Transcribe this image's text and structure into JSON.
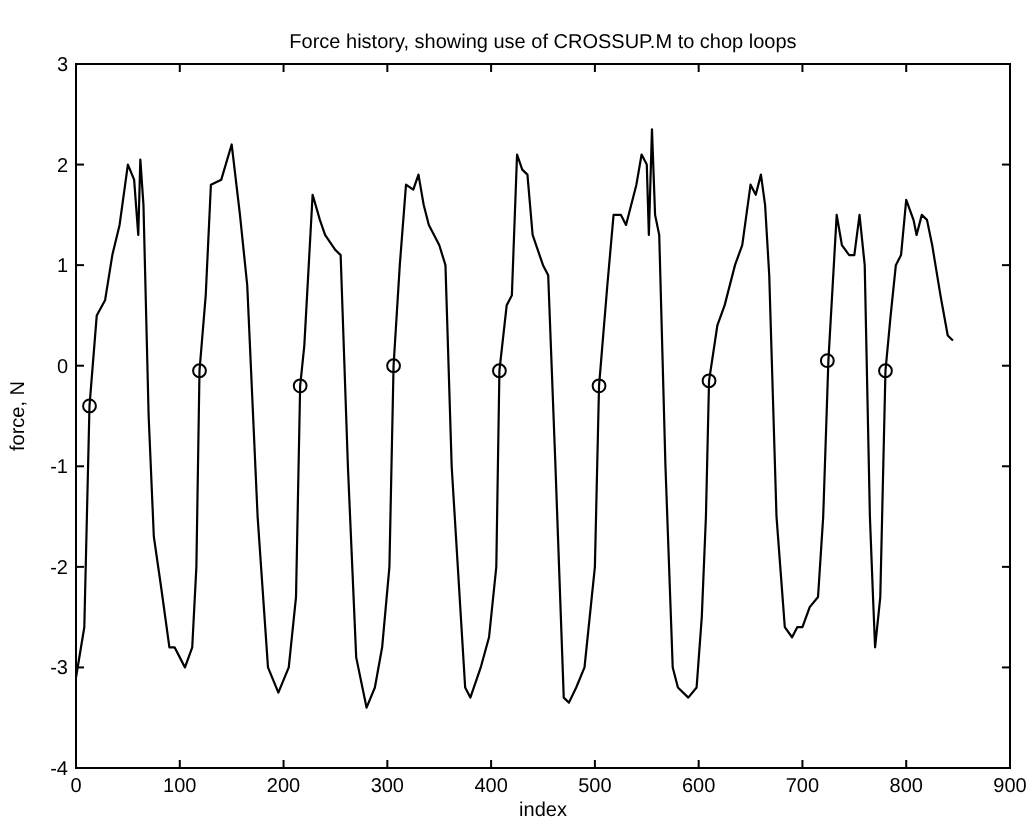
{
  "chart_data": {
    "type": "line",
    "title": "Force history, showing use of CROSSUP.M to chop loops",
    "xlabel": "index",
    "ylabel": "force, N",
    "series": [
      {
        "color": "#000000",
        "marker": "none",
        "x": [
          0,
          8,
          13,
          20,
          28,
          35,
          42,
          50,
          56,
          60,
          62,
          65,
          70,
          75,
          82,
          90,
          95,
          100,
          105,
          112,
          116,
          119,
          125,
          130,
          140,
          150,
          158,
          165,
          175,
          185,
          195,
          205,
          212,
          216,
          220,
          228,
          235,
          240,
          250,
          255,
          262,
          270,
          280,
          288,
          295,
          302,
          306,
          312,
          318,
          325,
          330,
          335,
          340,
          350,
          356,
          362,
          375,
          380,
          390,
          398,
          405,
          408,
          415,
          420,
          425,
          430,
          435,
          440,
          450,
          455,
          462,
          470,
          475,
          482,
          490,
          500,
          504,
          512,
          518,
          525,
          530,
          540,
          545,
          550,
          552,
          555,
          558,
          562,
          568,
          575,
          580,
          590,
          598,
          603,
          607,
          610,
          618,
          625,
          635,
          642,
          650,
          655,
          660,
          664,
          668,
          675,
          683,
          690,
          695,
          700,
          707,
          715,
          720,
          725,
          733,
          738,
          745,
          750,
          755,
          760,
          765,
          768,
          770,
          775,
          780,
          785,
          790,
          795,
          800,
          807,
          810,
          815,
          820,
          825,
          833,
          840,
          845
        ],
        "values": [
          -3.1,
          -2.6,
          -0.4,
          0.5,
          0.65,
          1.1,
          1.4,
          2.0,
          1.85,
          1.3,
          2.05,
          1.6,
          -0.5,
          -1.7,
          -2.2,
          -2.8,
          -2.8,
          -2.9,
          -3.0,
          -2.8,
          -2.0,
          -0.05,
          0.7,
          1.8,
          1.85,
          2.2,
          1.5,
          0.8,
          -1.5,
          -3.0,
          -3.25,
          -3.0,
          -2.3,
          -0.2,
          0.2,
          1.7,
          1.45,
          1.3,
          1.15,
          1.1,
          -1.0,
          -2.9,
          -3.4,
          -3.2,
          -2.8,
          -2.0,
          0.0,
          1.0,
          1.8,
          1.75,
          1.9,
          1.6,
          1.4,
          1.2,
          1.0,
          -1.0,
          -3.2,
          -3.3,
          -3.0,
          -2.7,
          -2.0,
          -0.05,
          0.6,
          0.7,
          2.1,
          1.95,
          1.9,
          1.3,
          1.0,
          0.9,
          -1.0,
          -3.3,
          -3.35,
          -3.2,
          -3.0,
          -2.0,
          -0.2,
          0.8,
          1.5,
          1.5,
          1.4,
          1.8,
          2.1,
          2.0,
          1.3,
          2.35,
          1.5,
          1.3,
          -1.0,
          -3.0,
          -3.2,
          -3.3,
          -3.2,
          -2.5,
          -1.5,
          -0.15,
          0.4,
          0.6,
          1.0,
          1.2,
          1.8,
          1.7,
          1.9,
          1.6,
          0.9,
          -1.5,
          -2.6,
          -2.7,
          -2.6,
          -2.6,
          -2.4,
          -2.3,
          -1.5,
          0.05,
          1.5,
          1.2,
          1.1,
          1.1,
          1.5,
          1.0,
          -1.5,
          -2.3,
          -2.8,
          -2.3,
          -0.05,
          0.5,
          1.0,
          1.1,
          1.65,
          1.45,
          1.3,
          1.5,
          1.45,
          1.2,
          0.7,
          0.3,
          0.25
        ]
      },
      {
        "type": "scatter",
        "color": "#000000",
        "marker": "circle",
        "x": [
          13,
          119,
          216,
          306,
          408,
          504,
          610,
          724,
          780
        ],
        "values": [
          -0.4,
          -0.05,
          -0.2,
          0.0,
          -0.05,
          -0.2,
          -0.15,
          0.05,
          -0.05
        ]
      }
    ],
    "xlim": [
      0,
      900
    ],
    "xticks": [
      0,
      100,
      200,
      300,
      400,
      500,
      600,
      700,
      800,
      900
    ],
    "ylim": [
      -4,
      3
    ],
    "yticks": [
      -4,
      -3,
      -2,
      -1,
      0,
      1,
      2,
      3
    ],
    "grid": false
  }
}
